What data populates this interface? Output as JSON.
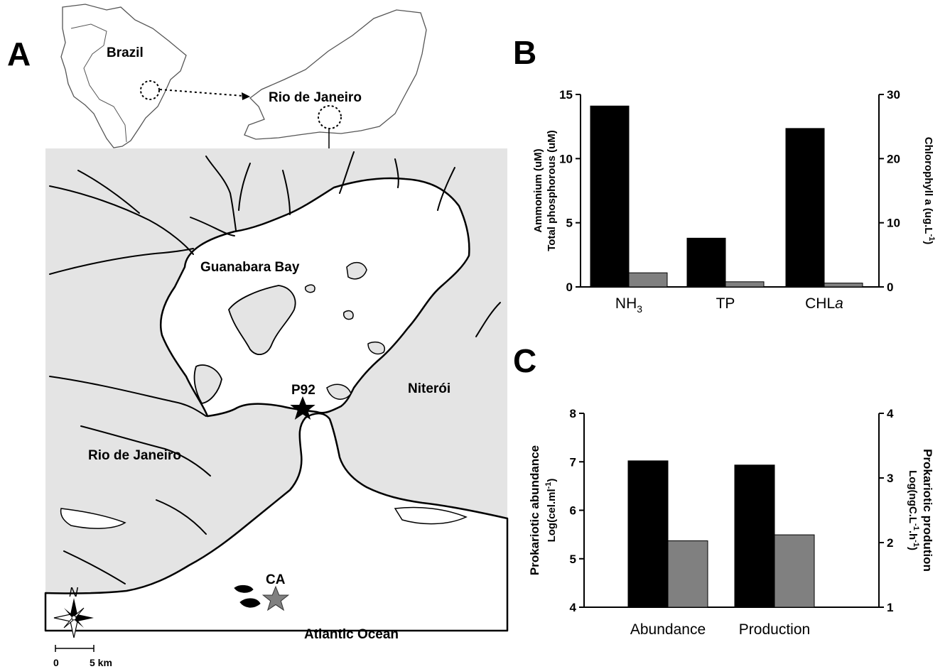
{
  "panels": {
    "a": "A",
    "b": "B",
    "c": "C"
  },
  "map": {
    "country": "Brazil",
    "state": "Rio de Janeiro",
    "bay": "Guanabara Bay",
    "city_east": "Niterói",
    "city_west": "Rio de Janeiro",
    "ocean": "Atlantic Ocean",
    "station_inner": "P92",
    "station_outer": "CA",
    "compass": "N",
    "scale_zero": "0",
    "scale_end": "5 km",
    "colors": {
      "land": "#e4e4e4",
      "water": "#ffffff",
      "station_inner": "#000000",
      "station_outer": "#808080"
    }
  },
  "chart_data": [
    {
      "type": "bar",
      "panel": "B",
      "categories": [
        "NH3",
        "TP",
        "CHLa"
      ],
      "category_labels": [
        {
          "main": "NH",
          "sub": "3",
          "italic": ""
        },
        {
          "main": "TP",
          "sub": "",
          "italic": ""
        },
        {
          "main": "CHL",
          "sub": "",
          "italic": "a"
        }
      ],
      "series": [
        {
          "values": [
            14.1,
            3.8,
            24.7
          ],
          "color": "#000000"
        },
        {
          "values": [
            1.1,
            0.4,
            0.6
          ],
          "color": "#808080"
        }
      ],
      "y_left": {
        "ylim": [
          0,
          15
        ],
        "ticks": [
          0,
          5,
          10,
          15
        ],
        "label_line1": "Ammonium (uM)",
        "label_line2": "Total phosphorous (uM)",
        "applies_to": [
          "NH3",
          "TP"
        ]
      },
      "y_right": {
        "ylim": [
          0,
          30
        ],
        "ticks": [
          0,
          10,
          20,
          30
        ],
        "label": "Chlorophyll a (ug.L",
        "label_sup": "-1",
        "label_end": ")",
        "applies_to": [
          "CHLa"
        ]
      },
      "grid": false
    },
    {
      "type": "bar",
      "panel": "C",
      "categories": [
        "Abundance",
        "Production"
      ],
      "series": [
        {
          "values": [
            7.02,
            3.2
          ],
          "color": "#000000"
        },
        {
          "values": [
            5.37,
            2.12
          ],
          "color": "#808080"
        }
      ],
      "y_left": {
        "ylim": [
          4,
          8
        ],
        "ticks": [
          4,
          5,
          6,
          7,
          8
        ],
        "label_line1": "Prokariotic abundance",
        "label_line2": "Log(cel.ml",
        "label_line2_sup": "-1",
        "label_line2_end": ")",
        "applies_to": [
          "Abundance"
        ]
      },
      "y_right": {
        "ylim": [
          1,
          4
        ],
        "ticks": [
          1,
          2,
          3,
          4
        ],
        "label_line1": "Prokariotic prodution",
        "label_line2": "Log(ngC.L",
        "label_line2_sup1": "-1",
        "label_line2_mid": ".h",
        "label_line2_sup2": "-1",
        "label_line2_end": ")",
        "applies_to": [
          "Production"
        ]
      },
      "grid": false
    }
  ]
}
